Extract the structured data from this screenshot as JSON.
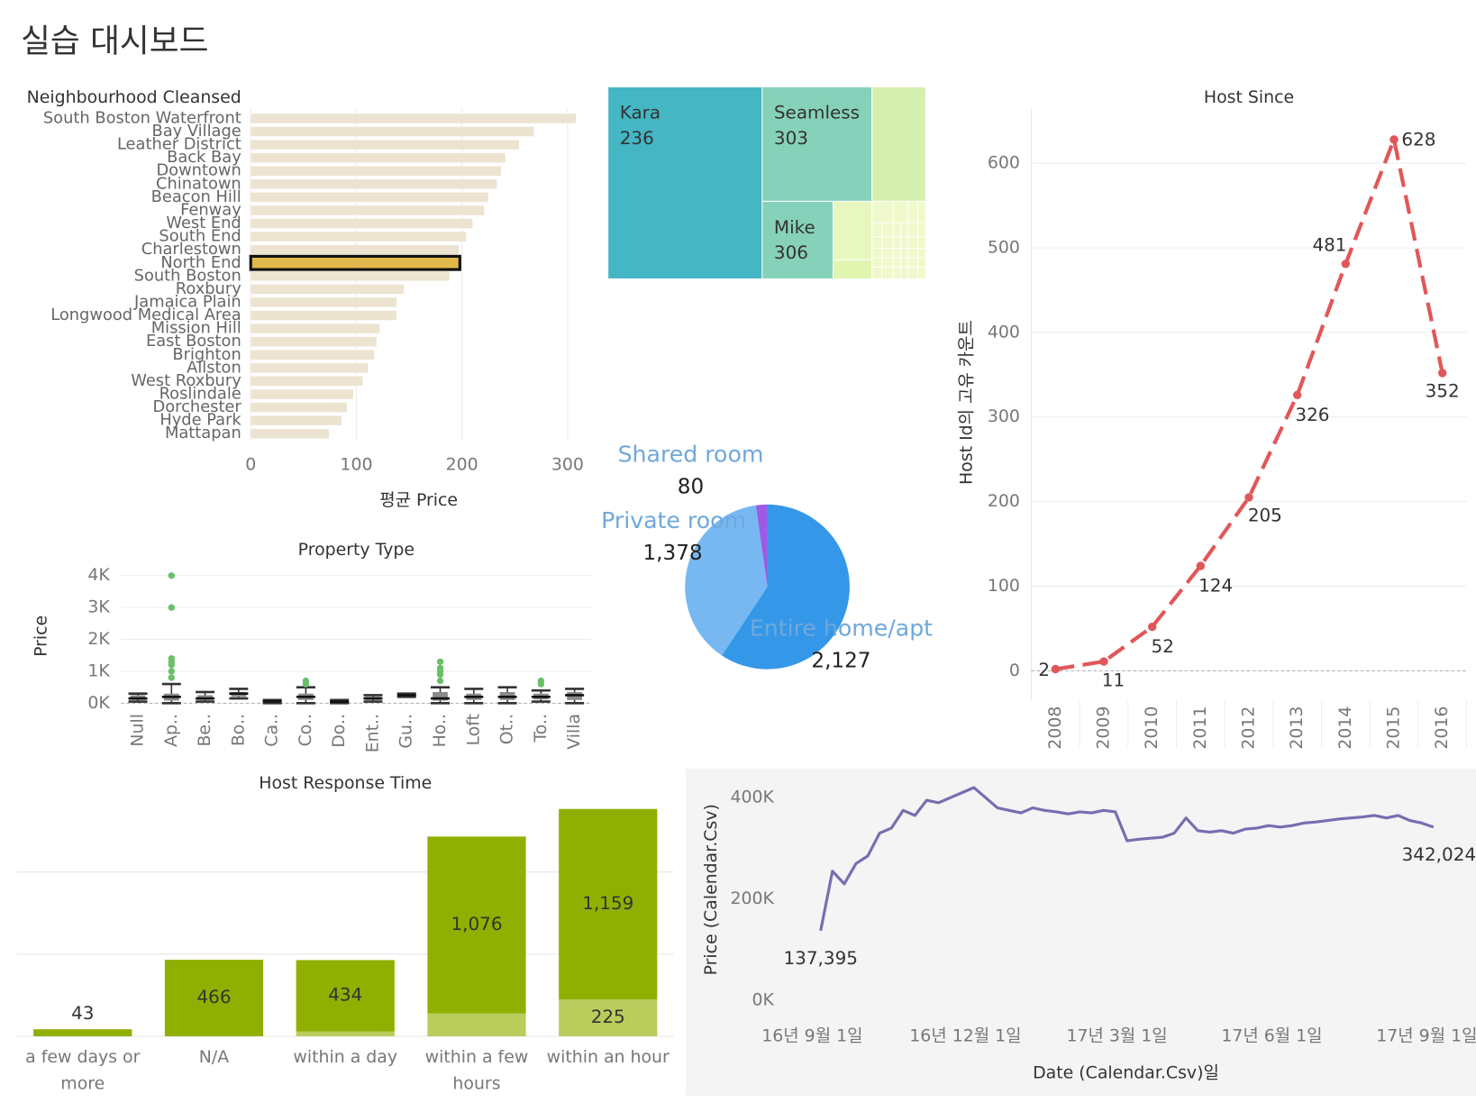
{
  "title": "실습 대시보드",
  "chart_data": [
    {
      "type": "bar",
      "orientation": "horizontal",
      "title": "Neighbourhood Cleansed",
      "x_label": "평균 Price",
      "categories": [
        "South Boston Waterfront",
        "Bay Village",
        "Leather District",
        "Back Bay",
        "Downtown",
        "Chinatown",
        "Beacon Hill",
        "Fenway",
        "West End",
        "South End",
        "Charlestown",
        "North End",
        "South Boston",
        "Roxbury",
        "Jamaica Plain",
        "Longwood Medical Area",
        "Mission Hill",
        "East Boston",
        "Brighton",
        "Allston",
        "West Roxbury",
        "Roslindale",
        "Dorchester",
        "Hyde Park",
        "Mattapan"
      ],
      "values": [
        308,
        268,
        254,
        241,
        237,
        233,
        225,
        221,
        210,
        204,
        197,
        198,
        188,
        145,
        138,
        138,
        122,
        119,
        117,
        111,
        106,
        97,
        91,
        86,
        74
      ],
      "color": "#ece4d0",
      "highlight_color": "#e0b94a",
      "highlight_index": 11,
      "xlim": [
        0,
        318
      ],
      "xticks": [
        0,
        100,
        200,
        300
      ],
      "grid": true
    },
    {
      "type": "treemap",
      "items": [
        {
          "name": "Kara",
          "value": 236,
          "color": "#44b6c4"
        },
        {
          "name": "Seamless",
          "value": 303,
          "color": "#86d1b9"
        },
        {
          "name": "Mike",
          "value": 306,
          "color": "#86d1b9"
        }
      ]
    },
    {
      "type": "pie",
      "categories": [
        "Entire home/apt",
        "Private room",
        "Shared room"
      ],
      "values": [
        2127,
        1378,
        80
      ],
      "value_labels": [
        "2,127",
        "1,378",
        "80"
      ],
      "colors": [
        "#3597e8",
        "#78b8f2",
        "#9b5be6"
      ],
      "label_color": "#6fa8dc"
    },
    {
      "type": "line",
      "title": "Host Since",
      "y_label": "Host Id의 고유 카운트",
      "categories": [
        "2008",
        "2009",
        "2010",
        "2011",
        "2012",
        "2013",
        "2014",
        "2015",
        "2016"
      ],
      "values": [
        2,
        11,
        52,
        124,
        205,
        326,
        481,
        628,
        352
      ],
      "color": "#e15759",
      "dashed": true,
      "ylim": [
        -35,
        664
      ],
      "yticks": [
        0,
        100,
        200,
        300,
        400,
        500,
        600
      ],
      "grid": true
    },
    {
      "type": "box",
      "title": "Property Type",
      "y_label": "Price",
      "categories": [
        "Null",
        "Ap..",
        "Be..",
        "Bo..",
        "Ca..",
        "Co..",
        "Do..",
        "Ent..",
        "Gu..",
        "Ho..",
        "Loft",
        "Ot..",
        "To..",
        "Villa"
      ],
      "boxes": [
        {
          "low": 50,
          "q1": 100,
          "median": 150,
          "q3": 250,
          "high": 300,
          "outliers": []
        },
        {
          "low": 0,
          "q1": 80,
          "median": 200,
          "q3": 300,
          "high": 600,
          "outliers": [
            800,
            1000,
            1200,
            1300,
            1400,
            3000,
            4000
          ]
        },
        {
          "low": 50,
          "q1": 100,
          "median": 150,
          "q3": 250,
          "high": 350,
          "outliers": []
        },
        {
          "low": 150,
          "q1": 200,
          "median": 300,
          "q3": 350,
          "high": 450,
          "outliers": []
        },
        {
          "low": 0,
          "q1": 50,
          "median": 60,
          "q3": 80,
          "high": 100,
          "outliers": []
        },
        {
          "low": 0,
          "q1": 100,
          "median": 200,
          "q3": 300,
          "high": 500,
          "outliers": [
            600,
            700
          ]
        },
        {
          "low": 0,
          "q1": 30,
          "median": 50,
          "q3": 80,
          "high": 100,
          "outliers": []
        },
        {
          "low": 50,
          "q1": 100,
          "median": 150,
          "q3": 200,
          "high": 250,
          "outliers": []
        },
        {
          "low": 200,
          "q1": 220,
          "median": 250,
          "q3": 280,
          "high": 300,
          "outliers": []
        },
        {
          "low": 0,
          "q1": 80,
          "median": 150,
          "q3": 350,
          "high": 500,
          "outliers": [
            700,
            900,
            1000,
            1100,
            1300
          ]
        },
        {
          "low": 0,
          "q1": 100,
          "median": 200,
          "q3": 300,
          "high": 450,
          "outliers": []
        },
        {
          "low": 0,
          "q1": 100,
          "median": 200,
          "q3": 350,
          "high": 500,
          "outliers": []
        },
        {
          "low": 50,
          "q1": 120,
          "median": 200,
          "q3": 300,
          "high": 400,
          "outliers": [
            600,
            700
          ]
        },
        {
          "low": 0,
          "q1": 100,
          "median": 250,
          "q3": 350,
          "high": 450,
          "outliers": []
        }
      ],
      "box_color": "#8a8a8a",
      "outlier_color": "#6abf69",
      "ylim": [
        -150,
        4240
      ],
      "yticks": [
        {
          "value": 0,
          "label": "0K"
        },
        {
          "value": 1000,
          "label": "1K"
        },
        {
          "value": 2000,
          "label": "2K"
        },
        {
          "value": 3000,
          "label": "3K"
        },
        {
          "value": 4000,
          "label": "4K"
        }
      ],
      "grid": true
    },
    {
      "type": "bar",
      "orientation": "vertical",
      "stacked": true,
      "title": "Host Response Time",
      "categories": [
        "a few days or more",
        "N/A",
        "within a day",
        "within a few hours",
        "within an hour"
      ],
      "series": [
        {
          "color": "#b9cc5c",
          "values": [
            null,
            null,
            30,
            140,
            225
          ],
          "value_labels": [
            null,
            null,
            null,
            null,
            "225"
          ]
        },
        {
          "color": "#8fb000",
          "values": [
            43,
            466,
            434,
            1076,
            1159
          ],
          "value_labels": [
            "43",
            "466",
            "434",
            "1,076",
            "1,159"
          ]
        }
      ],
      "ylim": [
        0,
        1440
      ],
      "ygrid": [
        0,
        500,
        1000
      ]
    },
    {
      "type": "line",
      "y_label": "Price (Calendar.Csv)",
      "x_label": "Date (Calendar.Csv)일",
      "background": "#f4f4f4",
      "color": "#7b6cb0",
      "x": [
        "2016-09-06",
        "2016-09-13",
        "2016-09-20",
        "2016-09-27",
        "2016-10-04",
        "2016-10-11",
        "2016-10-18",
        "2016-10-25",
        "2016-11-01",
        "2016-11-08",
        "2016-11-15",
        "2016-11-22",
        "2016-11-29",
        "2016-12-06",
        "2016-12-13",
        "2016-12-20",
        "2016-12-27",
        "2017-01-03",
        "2017-01-10",
        "2017-01-17",
        "2017-01-24",
        "2017-01-31",
        "2017-02-07",
        "2017-02-14",
        "2017-02-21",
        "2017-02-28",
        "2017-03-07",
        "2017-03-14",
        "2017-03-21",
        "2017-03-28",
        "2017-04-04",
        "2017-04-11",
        "2017-04-18",
        "2017-04-25",
        "2017-05-02",
        "2017-05-09",
        "2017-05-16",
        "2017-05-23",
        "2017-05-30",
        "2017-06-06",
        "2017-06-13",
        "2017-06-20",
        "2017-06-27",
        "2017-07-04",
        "2017-07-11",
        "2017-07-18",
        "2017-07-25",
        "2017-08-01",
        "2017-08-08",
        "2017-08-15",
        "2017-08-22",
        "2017-08-29",
        "2017-09-05"
      ],
      "values": [
        137395,
        255000,
        230000,
        270000,
        285000,
        330000,
        340000,
        375000,
        365000,
        395000,
        390000,
        400000,
        410000,
        420000,
        400000,
        380000,
        375000,
        370000,
        380000,
        375000,
        372000,
        368000,
        372000,
        370000,
        375000,
        372000,
        315000,
        318000,
        320000,
        322000,
        330000,
        360000,
        335000,
        332000,
        335000,
        330000,
        338000,
        340000,
        345000,
        342000,
        345000,
        350000,
        352000,
        355000,
        358000,
        360000,
        362000,
        365000,
        360000,
        365000,
        355000,
        350000,
        342024
      ],
      "value_labels": [
        "137,395",
        null,
        null,
        null,
        null,
        null,
        null,
        null,
        null,
        null,
        null,
        null,
        null,
        null,
        null,
        null,
        null,
        null,
        null,
        null,
        null,
        null,
        null,
        null,
        null,
        null,
        null,
        null,
        null,
        null,
        null,
        null,
        null,
        null,
        null,
        null,
        null,
        null,
        null,
        null,
        null,
        null,
        null,
        null,
        null,
        null,
        null,
        null,
        null,
        null,
        null,
        null,
        "342,024"
      ],
      "xlim": [
        "2016-08-16",
        "2017-09-19"
      ],
      "xticks": [
        {
          "value": "2016-09-01",
          "label": "16년 9월 1일"
        },
        {
          "value": "2016-12-01",
          "label": "16년 12월 1일"
        },
        {
          "value": "2017-03-01",
          "label": "17년 3월 1일"
        },
        {
          "value": "2017-06-01",
          "label": "17년 6월 1일"
        },
        {
          "value": "2017-09-01",
          "label": "17년 9월 1일"
        }
      ],
      "ylim": [
        -15000,
        424000
      ],
      "yticks": [
        {
          "value": 0,
          "label": "0K"
        },
        {
          "value": 200000,
          "label": "200K"
        },
        {
          "value": 400000,
          "label": "400K"
        }
      ]
    }
  ]
}
